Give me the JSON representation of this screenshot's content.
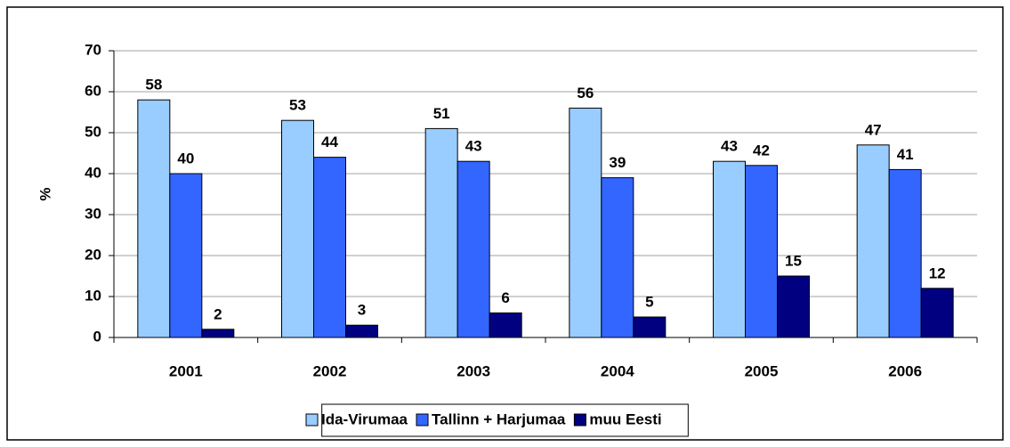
{
  "chart_data": {
    "type": "bar",
    "categories": [
      "2001",
      "2002",
      "2003",
      "2004",
      "2005",
      "2006"
    ],
    "series": [
      {
        "name": "Ida-Virumaa",
        "color": "#99ccff",
        "values": [
          58,
          53,
          51,
          56,
          43,
          47
        ]
      },
      {
        "name": "Tallinn + Harjumaa",
        "color": "#3366ff",
        "values": [
          40,
          44,
          43,
          39,
          42,
          41
        ]
      },
      {
        "name": "muu Eesti",
        "color": "#000080",
        "values": [
          2,
          3,
          6,
          5,
          15,
          12
        ]
      }
    ],
    "y_label": "%",
    "ylim": [
      0,
      70
    ],
    "yticks": [
      0,
      10,
      20,
      30,
      40,
      50,
      60,
      70
    ],
    "grid": true,
    "legend": "bottom"
  }
}
